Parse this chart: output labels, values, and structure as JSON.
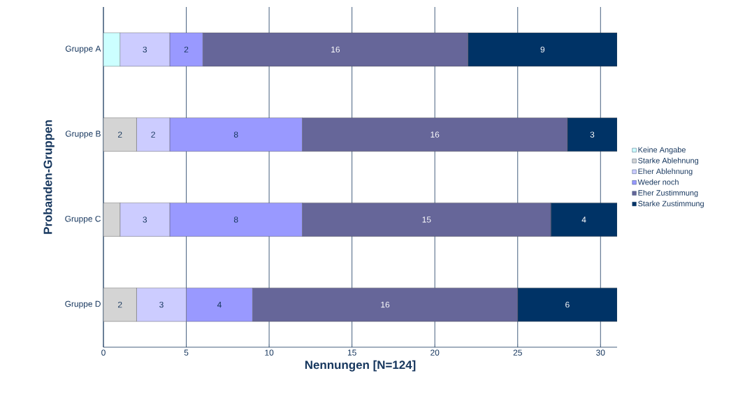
{
  "chart_data": {
    "type": "bar",
    "orientation": "horizontal",
    "stacked": true,
    "xlabel": "Nennungen [N=124]",
    "ylabel": "Probanden-Gruppen",
    "categories": [
      "Gruppe A",
      "Gruppe B",
      "Gruppe C",
      "Gruppe D"
    ],
    "series": [
      {
        "name": "Keine Angabe",
        "color": "#ccffff",
        "values": [
          1,
          null,
          null,
          null
        ],
        "value_labels": [
          null,
          null,
          null,
          null
        ]
      },
      {
        "name": "Starke Ablehnung",
        "color": "#d4d4d4",
        "values": [
          null,
          2,
          1,
          2
        ],
        "value_labels": [
          null,
          "2",
          null,
          "2"
        ]
      },
      {
        "name": "Eher Ablehnung",
        "color": "#ccccff",
        "values": [
          3,
          2,
          3,
          3
        ],
        "value_labels": [
          "3",
          "2",
          "3",
          "3"
        ]
      },
      {
        "name": "Weder noch",
        "color": "#9999ff",
        "values": [
          2,
          8,
          8,
          4
        ],
        "value_labels": [
          "2",
          "8",
          "8",
          "4"
        ]
      },
      {
        "name": "Eher Zustimmung",
        "color": "#666699",
        "values": [
          16,
          16,
          15,
          16
        ],
        "value_labels": [
          "16",
          "16",
          "15",
          "16"
        ]
      },
      {
        "name": "Starke Zustimmung",
        "color": "#003366",
        "values": [
          9,
          3,
          4,
          6
        ],
        "value_labels": [
          "9",
          "3",
          "4",
          "6"
        ]
      }
    ],
    "xlim": [
      0,
      31
    ],
    "xticks": [
      0,
      5,
      10,
      15,
      20,
      25,
      30
    ],
    "grid": "x",
    "legend": "right"
  }
}
